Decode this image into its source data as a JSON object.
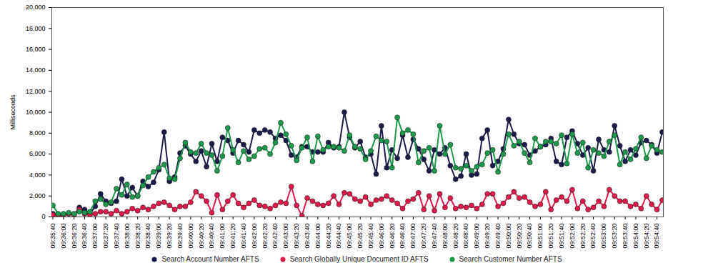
{
  "chart_data": {
    "type": "line",
    "y_label": "Milliseconds",
    "categories": [
      "09:35:40",
      null,
      "09:36:00",
      null,
      "09:36:20",
      null,
      "09:36:40",
      null,
      "09:37:00",
      null,
      "09:37:20",
      null,
      "09:37:40",
      null,
      "09:38:00",
      null,
      "09:38:20",
      null,
      "09:38:40",
      null,
      "09:39:00",
      null,
      "09:39:20",
      null,
      "09:39:40",
      null,
      "09:40:00",
      null,
      "09:40:20",
      null,
      "09:40:40",
      null,
      "09:41:00",
      null,
      "09:41:20",
      null,
      "09:41:40",
      null,
      "09:42:00",
      null,
      "09:42:20",
      null,
      "09:42:40",
      null,
      "09:43:00",
      null,
      "09:43:20",
      null,
      "09:43:40",
      null,
      "09:44:00",
      null,
      "09:44:20",
      null,
      "09:44:40",
      null,
      "09:45:00",
      null,
      "09:45:20",
      null,
      "09:45:40",
      null,
      "09:46:00",
      null,
      "09:46:20",
      null,
      "09:46:40",
      null,
      "09:47:00",
      null,
      "09:47:20",
      null,
      "09:47:40",
      null,
      "09:48:00",
      null,
      "09:48:20",
      null,
      "09:48:40",
      null,
      "09:49:00",
      null,
      "09:49:20",
      null,
      "09:49:40",
      null,
      "09:50:00",
      null,
      "09:50:20",
      null,
      "09:50:40",
      null,
      "09:51:00",
      null,
      "09:51:20",
      null,
      "09:51:40",
      null,
      "09:52:00",
      null,
      "09:52:20",
      null,
      "09:52:40",
      null,
      "09:53:00",
      null,
      "09:53:20",
      null,
      "09:53:40",
      null,
      "09:54:00",
      null,
      "09:54:20",
      null,
      "09:54:40",
      null
    ],
    "series": [
      {
        "name": "Search Account Number AFTS",
        "color": "#1b1b4b",
        "marker": "circle",
        "line_style": "solid",
        "values": [
          300,
          200,
          200,
          300,
          200,
          900,
          700,
          300,
          1000,
          2200,
          1500,
          1300,
          1500,
          3600,
          2000,
          2800,
          2000,
          3400,
          2900,
          3300,
          4500,
          8100,
          3400,
          3800,
          6100,
          6800,
          6000,
          5300,
          6300,
          4800,
          7000,
          5300,
          7600,
          7300,
          6100,
          7300,
          6900,
          6200,
          8300,
          8000,
          8300,
          8100,
          7500,
          7800,
          7300,
          5900,
          5700,
          6700,
          6700,
          6200,
          6200,
          6200,
          7100,
          6600,
          6700,
          10000,
          7600,
          6600,
          7200,
          5700,
          6000,
          4100,
          8700,
          4700,
          6400,
          5600,
          7800,
          5700,
          7400,
          6500,
          5500,
          4400,
          6400,
          6000,
          6600,
          4900,
          3600,
          3900,
          6000,
          4000,
          4100,
          7500,
          8300,
          4900,
          5300,
          6500,
          9300,
          7900,
          7000,
          6900,
          5900,
          6300,
          6700,
          6900,
          7500,
          5300,
          5000,
          7600,
          8200,
          7000,
          5900,
          6600,
          4400,
          7400,
          6400,
          6200,
          8700,
          6800,
          5300,
          6400,
          5900,
          7100,
          7300,
          6900,
          6100,
          8100
        ]
      },
      {
        "name": "Search Globally Unique Document ID AFTS",
        "color": "#e0194b",
        "marker": "circle",
        "line_style": "solid",
        "values": [
          200,
          100,
          200,
          300,
          200,
          700,
          300,
          200,
          300,
          500,
          500,
          300,
          600,
          300,
          500,
          800,
          600,
          900,
          700,
          1000,
          1300,
          1400,
          1100,
          700,
          1000,
          1000,
          1400,
          2400,
          2000,
          1500,
          400,
          2100,
          700,
          1500,
          2100,
          1300,
          900,
          1300,
          1600,
          1100,
          1000,
          800,
          1100,
          1400,
          1300,
          2900,
          1100,
          100,
          1800,
          1500,
          1200,
          1100,
          1300,
          2000,
          1200,
          2300,
          2200,
          1700,
          1500,
          1900,
          1200,
          1600,
          1700,
          2000,
          1600,
          1300,
          800,
          1500,
          1700,
          2300,
          700,
          2000,
          600,
          2200,
          900,
          1800,
          800,
          1000,
          900,
          1100,
          800,
          1200,
          2200,
          2200,
          1000,
          1300,
          1900,
          2400,
          1800,
          1900,
          1400,
          1000,
          1200,
          2400,
          700,
          1600,
          1900,
          1500,
          2600,
          800,
          1500,
          700,
          900,
          1500,
          1000,
          2600,
          2000,
          1500,
          1500,
          1000,
          1200,
          800,
          2000,
          1200,
          700,
          1600
        ]
      },
      {
        "name": "Search Customer Number AFTS",
        "color": "#1c9a4c",
        "marker": "circle",
        "line_style": "solid",
        "values": [
          1100,
          300,
          300,
          400,
          300,
          500,
          400,
          500,
          1500,
          1700,
          1200,
          1400,
          2700,
          2100,
          3100,
          1900,
          2000,
          3000,
          3800,
          4300,
          4700,
          5000,
          3700,
          3600,
          5600,
          7100,
          6200,
          6100,
          7000,
          6100,
          5900,
          4400,
          5800,
          8500,
          6400,
          5200,
          6300,
          5500,
          5800,
          6500,
          6600,
          6000,
          7100,
          9000,
          7900,
          6800,
          5400,
          6600,
          7600,
          5300,
          7700,
          6400,
          6700,
          6700,
          6600,
          6300,
          7800,
          6700,
          6500,
          5500,
          6300,
          7700,
          7300,
          7200,
          4700,
          9500,
          8000,
          8300,
          7900,
          5200,
          6300,
          6600,
          4400,
          8700,
          6000,
          6900,
          4700,
          4600,
          4900,
          4400,
          4800,
          5000,
          6100,
          6400,
          4300,
          6000,
          7900,
          6800,
          7200,
          6100,
          5200,
          7500,
          6700,
          7200,
          7200,
          7000,
          7800,
          5100,
          7900,
          6100,
          7100,
          4700,
          6400,
          6100,
          5800,
          7200,
          7800,
          5000,
          6200,
          5500,
          6500,
          7600,
          5600,
          6800,
          6400,
          6200
        ]
      }
    ],
    "ylim": [
      0,
      20000
    ],
    "yticks": [
      0,
      {
        "value": 2000,
        "label": "2,000"
      },
      {
        "value": 4000,
        "label": "4,000"
      },
      {
        "value": 6000,
        "label": "6,000"
      },
      {
        "value": 8000,
        "label": "8,000"
      },
      {
        "value": 10000,
        "label": "10,000"
      },
      {
        "value": 12000,
        "label": "12,000"
      },
      {
        "value": 14000,
        "label": "14,000"
      },
      {
        "value": 16000,
        "label": "16,000"
      },
      {
        "value": 18000,
        "label": "18,000"
      },
      {
        "value": 20000,
        "label": "20,000"
      }
    ],
    "grid": false,
    "legend": "bottom"
  }
}
